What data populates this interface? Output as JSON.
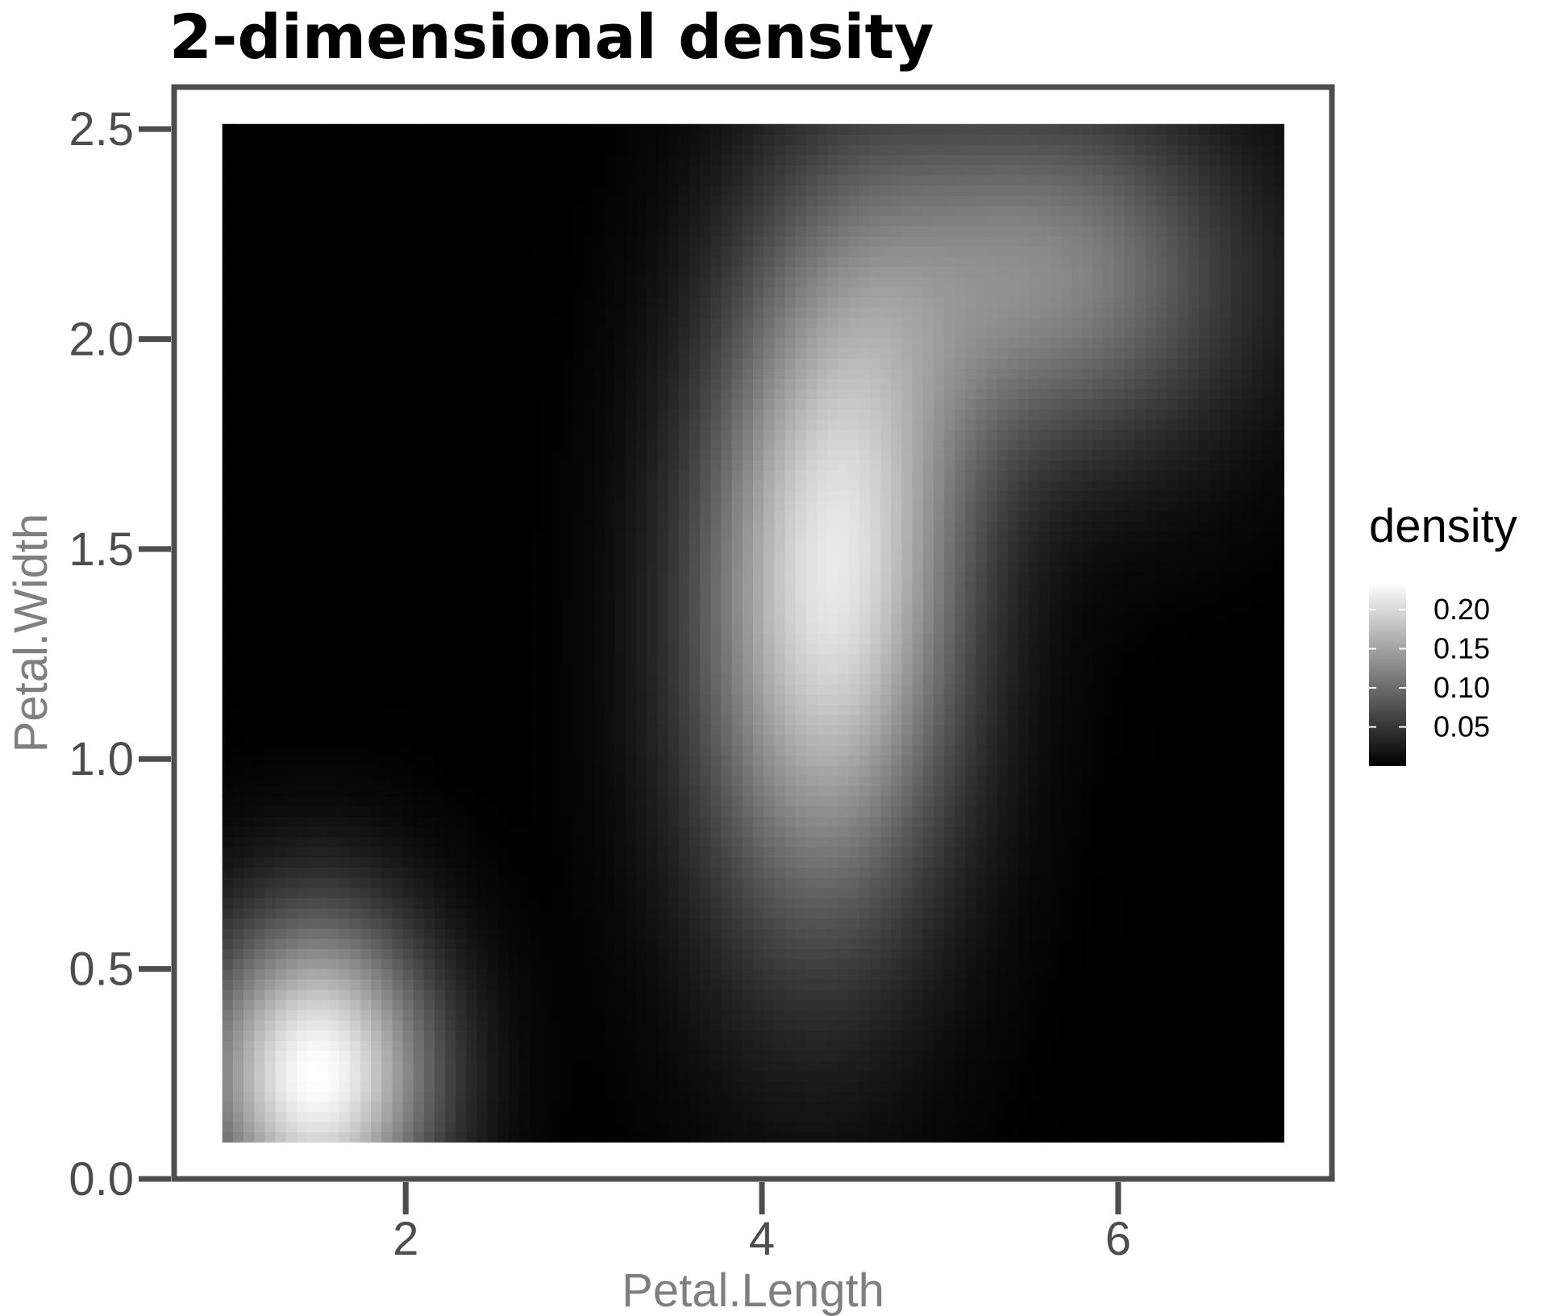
{
  "chart_data": {
    "type": "heatmap",
    "title": "2-dimensional density",
    "xlabel": "Petal.Length",
    "ylabel": "Petal.Width",
    "xlim": [
      1.0,
      6.9
    ],
    "ylim": [
      0.1,
      2.5
    ],
    "x_axis_range": [
      0.7,
      7.2
    ],
    "y_axis_range": [
      0.0,
      2.6
    ],
    "x_ticks": [
      2,
      4,
      6
    ],
    "x_tick_labels": [
      "2",
      "4",
      "6"
    ],
    "y_ticks": [
      0.0,
      0.5,
      1.0,
      1.5,
      2.0,
      2.5
    ],
    "y_tick_labels": [
      "0.0",
      "0.5",
      "1.0",
      "1.5",
      "2.0",
      "2.5"
    ],
    "grid": false,
    "legend": {
      "title": "density",
      "placement": "right",
      "min": 0.0,
      "max": 0.235,
      "ticks": [
        0.05,
        0.1,
        0.15,
        0.2
      ],
      "tick_labels": [
        "0.05",
        "0.10",
        "0.15",
        "0.20"
      ],
      "low_color": "#000000",
      "high_color": "#ffffff"
    },
    "grid_resolution": [
      100,
      100
    ],
    "peaks": [
      {
        "x": 1.5,
        "y": 0.25,
        "density": 0.235
      },
      {
        "x": 4.4,
        "y": 1.45,
        "density": 0.21
      },
      {
        "x": 5.6,
        "y": 2.1,
        "density": 0.12
      }
    ]
  },
  "colors": {
    "panel_border": "#4d4d4d",
    "tick_text": "#4d4d4d",
    "axis_title": "#7f7f7f",
    "title": "#000000"
  }
}
